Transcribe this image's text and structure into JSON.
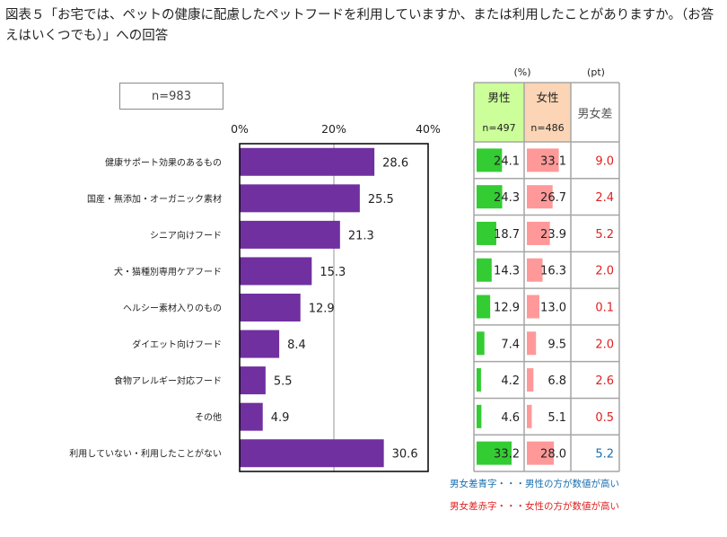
{
  "title": "図表５「お宅では、ペットの健康に配慮したペットフードを利用していますか、または利用したことがありますか。（お答えはいくつでも）」への回答",
  "sample_size": "n=983",
  "notes": {
    "blue": "男女差青字・・・男性の方が数値が高い",
    "red": "男女差赤字・・・女性の方が数値が高い"
  },
  "chart_data": {
    "type": "bar",
    "orientation": "horizontal",
    "title": "",
    "xlim": [
      0,
      40
    ],
    "xticks": [
      "0%",
      "20%",
      "40%"
    ],
    "bar_color": "#7030a0",
    "categories": [
      "健康サポート効果のあるもの",
      "国産・無添加・オーガニック素材",
      "シニア向けフード",
      "犬・猫種別専用ケアフード",
      "ヘルシー素材入りのもの",
      "ダイエット向けフード",
      "食物アレルギー対応フード",
      "その他",
      "利用していない・利用したことがない"
    ],
    "values": [
      28.6,
      25.5,
      21.3,
      15.3,
      12.9,
      8.4,
      5.5,
      4.9,
      30.6
    ],
    "value_labels": [
      "28.6",
      "25.5",
      "21.3",
      "15.3",
      "12.9",
      "8.4",
      "5.5",
      "4.9",
      "30.6"
    ]
  },
  "table": {
    "unit_pct": "(%)",
    "unit_pt": "(pt)",
    "headers": {
      "male": "男性",
      "female": "女性",
      "diff": "男女差"
    },
    "n_male": "n=497",
    "n_female": "n=486",
    "scale_max": 40,
    "male_color": "#33cc33",
    "female_color": "#ff9999",
    "male_header_bg": "#ccff99",
    "female_header_bg": "#fbd5b5",
    "blue": "#1a6fb0",
    "red": "#e02020",
    "rows": [
      {
        "male": 24.1,
        "female": 33.1,
        "male_label": "24.1",
        "female_label": "33.1",
        "diff": "9.0",
        "diff_color": "red"
      },
      {
        "male": 24.3,
        "female": 26.7,
        "male_label": "24.3",
        "female_label": "26.7",
        "diff": "2.4",
        "diff_color": "red"
      },
      {
        "male": 18.7,
        "female": 23.9,
        "male_label": "18.7",
        "female_label": "23.9",
        "diff": "5.2",
        "diff_color": "red"
      },
      {
        "male": 14.3,
        "female": 16.3,
        "male_label": "14.3",
        "female_label": "16.3",
        "diff": "2.0",
        "diff_color": "red"
      },
      {
        "male": 12.9,
        "female": 13.0,
        "male_label": "12.9",
        "female_label": "13.0",
        "diff": "0.1",
        "diff_color": "red"
      },
      {
        "male": 7.4,
        "female": 9.5,
        "male_label": "7.4",
        "female_label": "9.5",
        "diff": "2.0",
        "diff_color": "red"
      },
      {
        "male": 4.2,
        "female": 6.8,
        "male_label": "4.2",
        "female_label": "6.8",
        "diff": "2.6",
        "diff_color": "red"
      },
      {
        "male": 4.6,
        "female": 5.1,
        "male_label": "4.6",
        "female_label": "5.1",
        "diff": "0.5",
        "diff_color": "red"
      },
      {
        "male": 33.2,
        "female": 28.0,
        "male_label": "33.2",
        "female_label": "28.0",
        "diff": "5.2",
        "diff_color": "blue"
      }
    ]
  }
}
